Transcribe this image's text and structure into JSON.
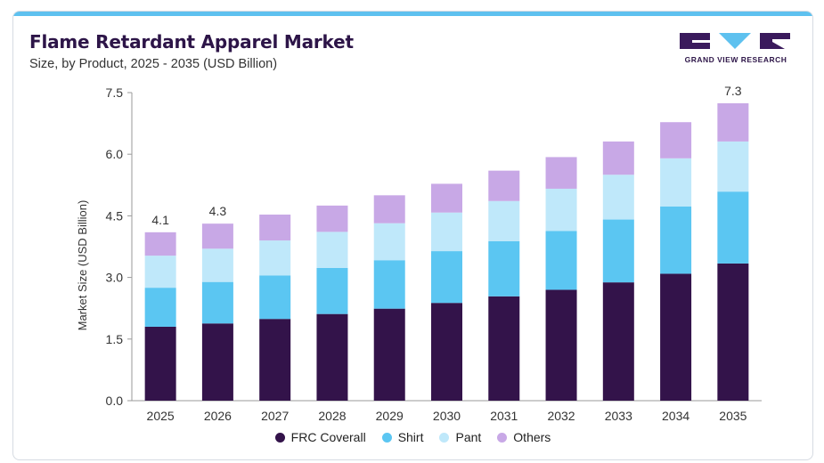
{
  "header": {
    "title": "Flame Retardant Apparel Market",
    "subtitle": "Size, by Product, 2025 - 2035 (USD Billion)",
    "logo_text": "GRAND VIEW RESEARCH"
  },
  "colors": {
    "accent_bar": "#5ec1ef",
    "logo_dark": "#3a1a5c",
    "logo_light": "#5ec1ef"
  },
  "chart_data": {
    "type": "bar",
    "stacked": true,
    "title": "Flame Retardant Apparel Market",
    "subtitle": "Size, by Product, 2025 - 2035 (USD Billion)",
    "xlabel": "",
    "ylabel": "Market Size (USD Billion)",
    "ylim": [
      0,
      7.5
    ],
    "yticks": [
      "0.0",
      "1.5",
      "3.0",
      "4.5",
      "6.0",
      "7.5"
    ],
    "grid": false,
    "legend_position": "bottom",
    "categories": [
      "2025",
      "2026",
      "2027",
      "2028",
      "2029",
      "2030",
      "2031",
      "2032",
      "2033",
      "2034",
      "2035"
    ],
    "series": [
      {
        "name": "FRC Coverall",
        "color": "#33134a",
        "values": [
          1.8,
          1.88,
          1.99,
          2.11,
          2.24,
          2.38,
          2.54,
          2.7,
          2.88,
          3.09,
          3.34
        ]
      },
      {
        "name": "Shirt",
        "color": "#5bc6f2",
        "values": [
          0.95,
          1.01,
          1.06,
          1.12,
          1.18,
          1.26,
          1.34,
          1.43,
          1.53,
          1.64,
          1.75
        ]
      },
      {
        "name": "Pant",
        "color": "#bfe8fa",
        "values": [
          0.78,
          0.81,
          0.85,
          0.88,
          0.9,
          0.94,
          0.98,
          1.03,
          1.09,
          1.17,
          1.22
        ]
      },
      {
        "name": "Others",
        "color": "#c8a8e6",
        "values": [
          0.57,
          0.61,
          0.63,
          0.64,
          0.68,
          0.7,
          0.74,
          0.77,
          0.81,
          0.88,
          0.93
        ]
      }
    ],
    "annotations": [
      {
        "category": "2025",
        "text": "4.1"
      },
      {
        "category": "2026",
        "text": "4.3"
      },
      {
        "category": "2035",
        "text": "7.3"
      }
    ]
  }
}
